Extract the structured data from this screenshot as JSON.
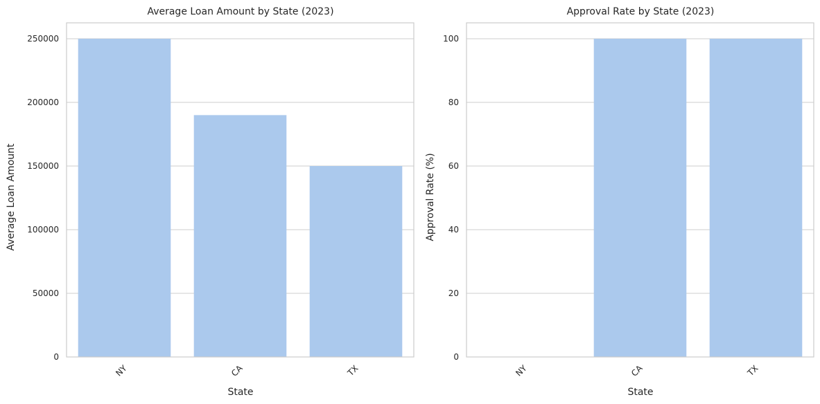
{
  "colors": {
    "bar": "#abc9ed",
    "grid": "#cccccc",
    "frame": "#cccccc",
    "text": "#262626"
  },
  "chart_data": [
    {
      "type": "bar",
      "title": "Average Loan Amount by State (2023)",
      "xlabel": "State",
      "ylabel": "Average Loan Amount",
      "categories": [
        "NY",
        "CA",
        "TX"
      ],
      "values": [
        250000,
        190000,
        150000
      ],
      "ylim": [
        0,
        262500
      ],
      "yticks": [
        0,
        50000,
        100000,
        150000,
        200000,
        250000
      ],
      "ytick_labels": [
        "0",
        "50000",
        "100000",
        "150000",
        "200000",
        "250000"
      ],
      "grid": "horizontal",
      "legend": "none"
    },
    {
      "type": "bar",
      "title": "Approval Rate by State (2023)",
      "xlabel": "State",
      "ylabel": "Approval Rate (%)",
      "categories": [
        "NY",
        "CA",
        "TX"
      ],
      "values": [
        0,
        100,
        100
      ],
      "ylim": [
        0,
        105
      ],
      "yticks": [
        0,
        20,
        40,
        60,
        80,
        100
      ],
      "ytick_labels": [
        "0",
        "20",
        "40",
        "60",
        "80",
        "100"
      ],
      "grid": "horizontal",
      "legend": "none"
    }
  ]
}
